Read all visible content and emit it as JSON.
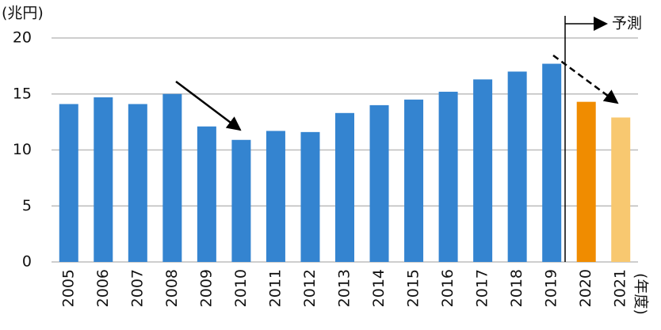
{
  "chart_data": {
    "type": "bar",
    "y_unit": "(兆円)",
    "x_unit": "(年度)",
    "annotation": "予測",
    "categories": [
      "2005",
      "2006",
      "2007",
      "2008",
      "2009",
      "2010",
      "2011",
      "2012",
      "2013",
      "2014",
      "2015",
      "2016",
      "2017",
      "2018",
      "2019",
      "2020",
      "2021"
    ],
    "values": [
      14.1,
      14.7,
      14.1,
      15.0,
      12.1,
      10.9,
      11.7,
      11.6,
      13.3,
      14.0,
      14.5,
      15.2,
      16.3,
      17.0,
      17.7,
      14.3,
      12.9
    ],
    "colors": [
      "#3484d0",
      "#3484d0",
      "#3484d0",
      "#3484d0",
      "#3484d0",
      "#3484d0",
      "#3484d0",
      "#3484d0",
      "#3484d0",
      "#3484d0",
      "#3484d0",
      "#3484d0",
      "#3484d0",
      "#3484d0",
      "#3484d0",
      "#f08c00",
      "#f8c870"
    ],
    "ylim": [
      0,
      20
    ],
    "yticks": [
      0,
      5,
      10,
      15,
      20
    ],
    "grid": true
  }
}
